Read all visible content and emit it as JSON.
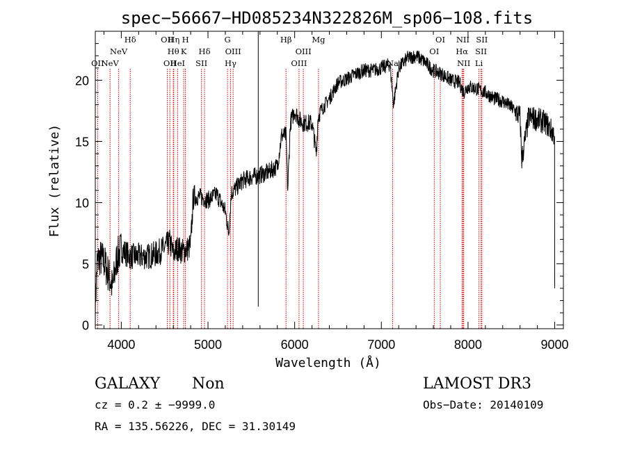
{
  "chart_data": {
    "type": "line",
    "title": "spec−56667−HD085234N322826M_sp06−108.fits",
    "xlabel": "Wavelength (Å)",
    "ylabel": "Flux (relative)",
    "xlim": [
      3700,
      9100
    ],
    "ylim": [
      -0.3,
      24
    ],
    "xticks": [
      4000,
      5000,
      6000,
      7000,
      8000,
      9000
    ],
    "yticks": [
      0,
      5,
      10,
      15,
      20
    ],
    "xtick_labels": [
      "4000",
      "5000",
      "6000",
      "7000",
      "8000",
      "9000"
    ],
    "ytick_labels": [
      "0",
      "5",
      "10",
      "15",
      "20"
    ],
    "spectrum_anchors": {
      "x": [
        3700,
        3720,
        3750,
        3800,
        3850,
        3900,
        3950,
        4000,
        4100,
        4200,
        4300,
        4400,
        4500,
        4560,
        4600,
        4650,
        4700,
        4760,
        4800,
        4830,
        4900,
        5000,
        5100,
        5200,
        5240,
        5270,
        5300,
        5400,
        5500,
        5580,
        5700,
        5800,
        5850,
        5900,
        5920,
        5950,
        6000,
        6050,
        6100,
        6200,
        6250,
        6270,
        6300,
        6400,
        6500,
        6600,
        6700,
        6800,
        6900,
        7000,
        7100,
        7140,
        7200,
        7300,
        7400,
        7500,
        7600,
        7700,
        7800,
        7900,
        7950,
        8000,
        8100,
        8200,
        8300,
        8400,
        8500,
        8600,
        8620,
        8700,
        8800,
        8900,
        9000
      ],
      "y": [
        1.5,
        5.0,
        5.5,
        5.2,
        4.2,
        3.0,
        5.5,
        6.2,
        5.6,
        5.6,
        5.6,
        5.8,
        6.3,
        6.8,
        5.8,
        6.3,
        6.0,
        6.2,
        6.5,
        10.4,
        10.5,
        10.2,
        10.7,
        9.3,
        7.5,
        10.8,
        11.0,
        11.8,
        12.1,
        12.2,
        12.5,
        13.0,
        15.5,
        15.5,
        11.0,
        16.5,
        17.5,
        16.8,
        16.5,
        16.5,
        14.0,
        17.0,
        17.5,
        18.5,
        19.8,
        20.1,
        20.5,
        20.8,
        20.8,
        21.0,
        21.3,
        18.0,
        21.0,
        21.8,
        22.0,
        21.5,
        20.8,
        20.5,
        20.0,
        19.8,
        19.0,
        19.5,
        19.3,
        19.0,
        18.5,
        18.3,
        17.8,
        17.0,
        13.5,
        17.0,
        16.8,
        16.5,
        15.5
      ],
      "note": "Flux (relative) vs wavelength anchor points of the plotted spectrum; fine-scale noise is added when drawing"
    },
    "emission_lines": [
      {
        "wavelength": 3727,
        "label": "OII",
        "tier": 3
      },
      {
        "wavelength": 3870,
        "label": "NeV",
        "tier": 3
      },
      {
        "wavelength": 3970,
        "label": "NeV",
        "tier": 2
      },
      {
        "wavelength": 4103,
        "label": "Hδ",
        "tier": 1
      },
      {
        "wavelength": 4530,
        "label": "OII",
        "tier": 1
      },
      {
        "wavelength": 4605,
        "label": "Hη",
        "tier": 1
      },
      {
        "wavelength": 4600,
        "label": "Hθ",
        "tier": 2
      },
      {
        "wavelength": 4560,
        "label": "OII",
        "tier": 3
      },
      {
        "wavelength": 4650,
        "label": "HeI",
        "tier": 3
      },
      {
        "wavelength": 4740,
        "label": "H",
        "tier": 1
      },
      {
        "wavelength": 4720,
        "label": "K",
        "tier": 2
      },
      {
        "wavelength": 4960,
        "label": "Hδ",
        "tier": 2
      },
      {
        "wavelength": 4925,
        "label": "SII",
        "tier": 3
      },
      {
        "wavelength": 5225,
        "label": "G",
        "tier": 1
      },
      {
        "wavelength": 5290,
        "label": "OIII",
        "tier": 2
      },
      {
        "wavelength": 5260,
        "label": "Hγ",
        "tier": 3
      },
      {
        "wavelength": 5900,
        "label": "Hβ",
        "tier": 1
      },
      {
        "wavelength": 6100,
        "label": "OIII",
        "tier": 2
      },
      {
        "wavelength": 6050,
        "label": "OIII",
        "tier": 3
      },
      {
        "wavelength": 6275,
        "label": "Mg",
        "tier": 1
      },
      {
        "wavelength": 7130,
        "label": "Na",
        "tier": 3
      },
      {
        "wavelength": 7680,
        "label": "OI",
        "tier": 1
      },
      {
        "wavelength": 7610,
        "label": "OI",
        "tier": 2
      },
      {
        "wavelength": 7940,
        "label": "NII",
        "tier": 1
      },
      {
        "wavelength": 7930,
        "label": "Hα",
        "tier": 2
      },
      {
        "wavelength": 7950,
        "label": "NII",
        "tier": 3
      },
      {
        "wavelength": 8160,
        "label": "SII",
        "tier": 1
      },
      {
        "wavelength": 8150,
        "label": "SII",
        "tier": 2
      },
      {
        "wavelength": 8125,
        "label": "Li",
        "tier": 3
      }
    ],
    "cutoff_line": {
      "wavelength": 5580,
      "low": 1.5,
      "high": 24
    },
    "colors": {
      "spectrum": "#000000",
      "lines": "#cc0000",
      "axes": "#000000"
    }
  },
  "info": {
    "object_class": "GALAXY",
    "subclass": "Non",
    "survey": "LAMOST DR3",
    "cz": "cz = 0.2 ± −9999.0",
    "obs_date": "Obs−Date: 20140109",
    "coords": "RA = 135.56226, DEC =  31.30149"
  }
}
